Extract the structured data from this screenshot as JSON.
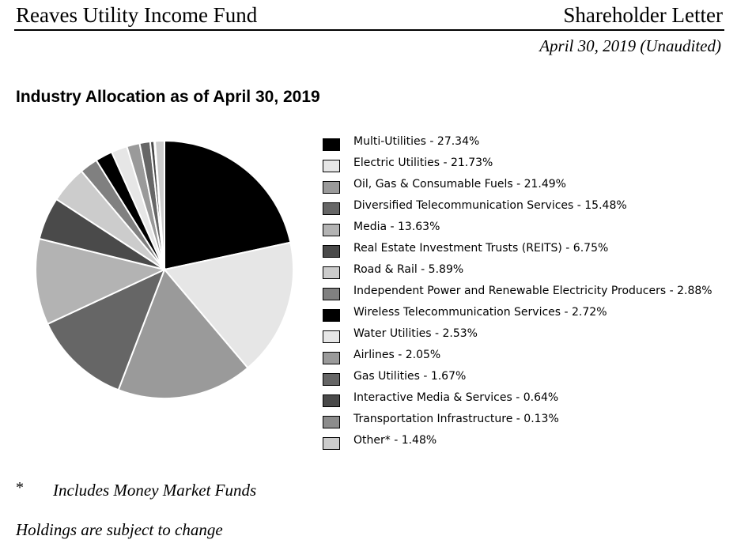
{
  "header": {
    "fund_name": "Reaves Utility Income Fund",
    "document_type": "Shareholder Letter",
    "date_line": "April 30, 2019 (Unaudited)"
  },
  "chart_data": {
    "type": "pie",
    "title": "Industry Allocation as of April 30, 2019",
    "slices": [
      {
        "label": "Multi-Utilities - 27.34%",
        "value": 27.34,
        "color": "#000000"
      },
      {
        "label": "Electric Utilities - 21.73%",
        "value": 21.73,
        "color": "#e6e6e6"
      },
      {
        "label": "Oil, Gas & Consumable Fuels - 21.49%",
        "value": 21.49,
        "color": "#9a9a9a"
      },
      {
        "label": "Diversified Telecommunication Services - 15.48%",
        "value": 15.48,
        "color": "#666666"
      },
      {
        "label": "Media - 13.63%",
        "value": 13.63,
        "color": "#b3b3b3"
      },
      {
        "label": "Real Estate Investment Trusts (REITS) - 6.75%",
        "value": 6.75,
        "color": "#4a4a4a"
      },
      {
        "label": "Road & Rail - 5.89%",
        "value": 5.89,
        "color": "#cccccc"
      },
      {
        "label": "Independent Power and Renewable Electricity Producers - 2.88%",
        "value": 2.88,
        "color": "#808080"
      },
      {
        "label": "Wireless Telecommunication Services - 2.72%",
        "value": 2.72,
        "color": "#000000"
      },
      {
        "label": "Water Utilities - 2.53%",
        "value": 2.53,
        "color": "#e6e6e6"
      },
      {
        "label": "Airlines - 2.05%",
        "value": 2.05,
        "color": "#9a9a9a"
      },
      {
        "label": "Gas Utilities - 1.67%",
        "value": 1.67,
        "color": "#666666"
      },
      {
        "label": "Interactive Media & Services - 0.64%",
        "value": 0.64,
        "color": "#4a4a4a"
      },
      {
        "label": "Transportation Infrastructure - 0.13%",
        "value": 0.13,
        "color": "#8c8c8c"
      },
      {
        "label": "Other* - 1.48%",
        "value": 1.48,
        "color": "#cccccc"
      }
    ]
  },
  "footnotes": {
    "star": "*",
    "star_text": "Includes Money Market Funds",
    "holdings": "Holdings are subject to change"
  }
}
